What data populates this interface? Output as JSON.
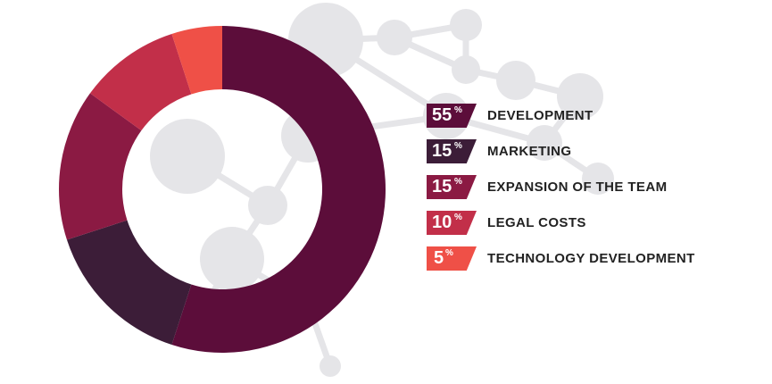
{
  "chart_data": {
    "type": "pie",
    "variant": "donut",
    "categories": [
      "DEVELOPMENT",
      "MARKETING",
      "EXPANSION OF THE TEAM",
      "LEGAL COSTS",
      "TECHNOLOGY DEVELOPMENT"
    ],
    "values": [
      55,
      15,
      15,
      10,
      5
    ],
    "percent_symbol": "%",
    "colors": [
      "#5c0d3a",
      "#3c1d38",
      "#8b1a43",
      "#c22f49",
      "#ef5047"
    ],
    "legend_position": "right"
  },
  "background": {
    "decoration": "molecule-network",
    "color": "#e5e5e8"
  }
}
